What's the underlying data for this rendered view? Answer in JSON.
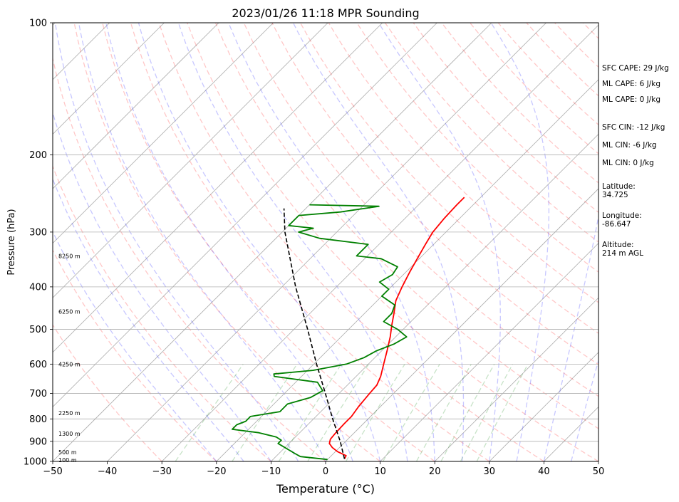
{
  "chart_data": {
    "type": "line",
    "title": "2023/01/26 11:18 MPR Sounding",
    "xlabel": "Temperature (°C)",
    "ylabel": "Pressure (hPa)",
    "xlim": [
      -50,
      50
    ],
    "ylim": [
      1000,
      100
    ],
    "y_scale": "log",
    "skew_degrees": 45,
    "grid": true,
    "x_ticks": [
      "−50",
      "−40",
      "−30",
      "−20",
      "−10",
      "0",
      "10",
      "20",
      "30",
      "40",
      "50"
    ],
    "y_ticks": [
      {
        "p": 100,
        "label": "100"
      },
      {
        "p": 200,
        "label": "200"
      },
      {
        "p": 300,
        "label": "300"
      },
      {
        "p": 400,
        "label": "400"
      },
      {
        "p": 500,
        "label": "500"
      },
      {
        "p": 600,
        "label": "600"
      },
      {
        "p": 700,
        "label": "700"
      },
      {
        "p": 800,
        "label": "800"
      },
      {
        "p": 900,
        "label": "900"
      },
      {
        "p": 1000,
        "label": "1000"
      }
    ],
    "height_labels": [
      {
        "p": 992,
        "label": "100 m"
      },
      {
        "p": 952,
        "label": "500 m"
      },
      {
        "p": 865,
        "label": "1300 m"
      },
      {
        "p": 775,
        "label": "2250 m"
      },
      {
        "p": 600,
        "label": "4250 m"
      },
      {
        "p": 455,
        "label": "6250 m"
      },
      {
        "p": 340,
        "label": "8250 m"
      }
    ],
    "series": [
      {
        "color": "#ff0000",
        "points": [
          {
            "p": 987,
            "t": 3.0
          },
          {
            "p": 970,
            "t": 2.7
          },
          {
            "p": 950,
            "t": 0.4
          },
          {
            "p": 930,
            "t": -1.3
          },
          {
            "p": 910,
            "t": -2.6
          },
          {
            "p": 890,
            "t": -3.2
          },
          {
            "p": 860,
            "t": -3.4
          },
          {
            "p": 820,
            "t": -3.5
          },
          {
            "p": 790,
            "t": -3.5
          },
          {
            "p": 750,
            "t": -4.0
          },
          {
            "p": 700,
            "t": -4.4
          },
          {
            "p": 670,
            "t": -4.6
          },
          {
            "p": 640,
            "t": -5.5
          },
          {
            "p": 600,
            "t": -7.2
          },
          {
            "p": 560,
            "t": -9.0
          },
          {
            "p": 520,
            "t": -11.0
          },
          {
            "p": 490,
            "t": -12.8
          },
          {
            "p": 460,
            "t": -14.6
          },
          {
            "p": 430,
            "t": -16.6
          },
          {
            "p": 400,
            "t": -18.0
          },
          {
            "p": 370,
            "t": -19.3
          },
          {
            "p": 340,
            "t": -20.6
          },
          {
            "p": 320,
            "t": -21.5
          },
          {
            "p": 300,
            "t": -22.4
          },
          {
            "p": 280,
            "t": -22.8
          },
          {
            "p": 260,
            "t": -23.0
          },
          {
            "p": 250,
            "t": -23.0
          }
        ]
      },
      {
        "color": "#008000",
        "points": [
          {
            "p": 990,
            "t": 0.0
          },
          {
            "p": 975,
            "t": -5.5
          },
          {
            "p": 960,
            "t": -7.0
          },
          {
            "p": 940,
            "t": -9.0
          },
          {
            "p": 910,
            "t": -12.0
          },
          {
            "p": 895,
            "t": -12.0
          },
          {
            "p": 880,
            "t": -13.5
          },
          {
            "p": 860,
            "t": -17.5
          },
          {
            "p": 845,
            "t": -23.0
          },
          {
            "p": 825,
            "t": -23.0
          },
          {
            "p": 810,
            "t": -22.0
          },
          {
            "p": 790,
            "t": -22.0
          },
          {
            "p": 770,
            "t": -17.5
          },
          {
            "p": 740,
            "t": -17.5
          },
          {
            "p": 715,
            "t": -14.5
          },
          {
            "p": 690,
            "t": -13.5
          },
          {
            "p": 660,
            "t": -16.0
          },
          {
            "p": 640,
            "t": -25.0
          },
          {
            "p": 632,
            "t": -25.5
          },
          {
            "p": 620,
            "t": -19.0
          },
          {
            "p": 600,
            "t": -14.0
          },
          {
            "p": 580,
            "t": -12.0
          },
          {
            "p": 560,
            "t": -11.0
          },
          {
            "p": 540,
            "t": -9.0
          },
          {
            "p": 520,
            "t": -8.0
          },
          {
            "p": 500,
            "t": -11.0
          },
          {
            "p": 480,
            "t": -15.0
          },
          {
            "p": 460,
            "t": -15.0
          },
          {
            "p": 440,
            "t": -16.0
          },
          {
            "p": 420,
            "t": -20.0
          },
          {
            "p": 405,
            "t": -20.0
          },
          {
            "p": 390,
            "t": -23.0
          },
          {
            "p": 375,
            "t": -22.0
          },
          {
            "p": 360,
            "t": -22.5
          },
          {
            "p": 345,
            "t": -27.0
          },
          {
            "p": 340,
            "t": -32.0
          },
          {
            "p": 330,
            "t": -32.0
          },
          {
            "p": 320,
            "t": -32.0
          },
          {
            "p": 310,
            "t": -42.0
          },
          {
            "p": 300,
            "t": -47.0
          },
          {
            "p": 294,
            "t": -45.0
          },
          {
            "p": 290,
            "t": -50.0
          },
          {
            "p": 275,
            "t": -50.0
          },
          {
            "p": 270,
            "t": -43.0
          },
          {
            "p": 262,
            "t": -37.0
          },
          {
            "p": 260,
            "t": -50.0
          }
        ]
      },
      {
        "color": "#000000",
        "dashed": true,
        "points": [
          {
            "p": 987,
            "t": 3.0
          },
          {
            "p": 900,
            "t": -1.0
          },
          {
            "p": 800,
            "t": -6.5
          },
          {
            "p": 700,
            "t": -12.5
          },
          {
            "p": 600,
            "t": -19.5
          },
          {
            "p": 500,
            "t": -27.5
          },
          {
            "p": 400,
            "t": -37.5
          },
          {
            "p": 300,
            "t": -49.5
          },
          {
            "p": 265,
            "t": -54.0
          }
        ]
      }
    ],
    "background_lines": {
      "dry_adiabat_color": "#ff0000",
      "moist_adiabat_color": "#0000ff",
      "mixing_ratio_color": "#008000",
      "isotherm_color": "#808080"
    }
  },
  "side_panel": {
    "items": [
      {
        "text": "SFC CAPE: 29 J/kg",
        "p": 127
      },
      {
        "text": "ML CAPE: 6 J/kg",
        "p": 138
      },
      {
        "text": "ML CAPE: 0 J/kg",
        "p": 150
      },
      {
        "text": "SFC CIN: -12 J/kg",
        "p": 173
      },
      {
        "text": "ML CIN: -6 J/kg",
        "p": 190
      },
      {
        "text": "ML CIN: 0 J/kg",
        "p": 209
      },
      {
        "text": "Latitude:\n34.725",
        "p": 236
      },
      {
        "text": "Longitude:\n-86.647",
        "p": 275
      },
      {
        "text": "Altitude:\n214 m AGL",
        "p": 321
      }
    ]
  }
}
